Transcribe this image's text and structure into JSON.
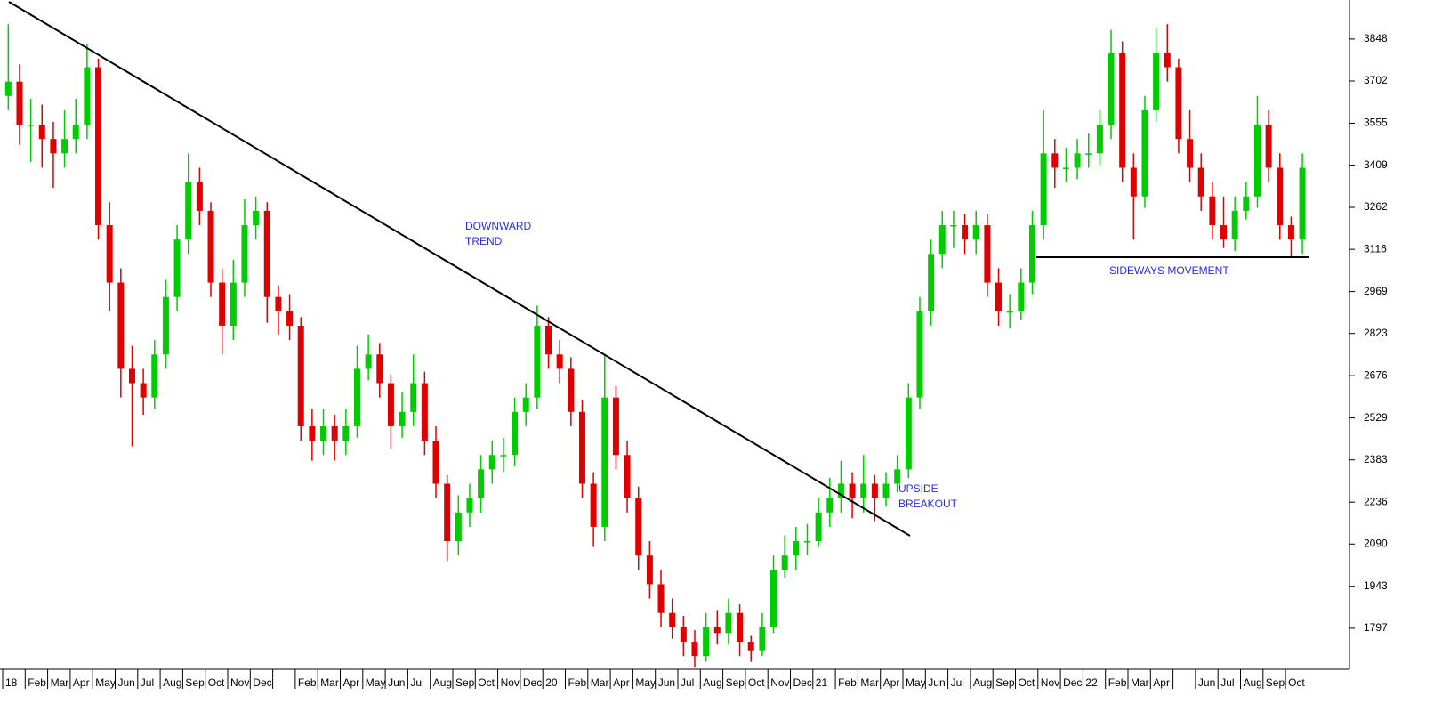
{
  "chart_data": {
    "type": "candlestick",
    "up_color": "#00cc00",
    "down_color": "#e00000",
    "ylim": [
      1654,
      3984
    ],
    "yticks": [
      1797,
      1943,
      2090,
      2236,
      2383,
      2529,
      2676,
      2823,
      2969,
      3116,
      3262,
      3409,
      3555,
      3702,
      3848
    ],
    "categories": [
      "18",
      "Feb",
      "Mar",
      "Apr",
      "May",
      "Jun",
      "Jul",
      "Aug",
      "Sep",
      "Oct",
      "Nov",
      "Dec",
      null,
      "Feb",
      "Mar",
      "Apr",
      "May",
      "Jun",
      "Jul",
      "Aug",
      "Sep",
      "Oct",
      "Nov",
      "Dec",
      "20",
      "Feb",
      "Mar",
      "Apr",
      "May",
      "Jun",
      "Jul",
      "Aug",
      "Sep",
      "Oct",
      "Nov",
      "Dec",
      "21",
      "Feb",
      "Mar",
      "Apr",
      "May",
      "Jun",
      "Jul",
      "Aug",
      "Sep",
      "Oct",
      "Nov",
      "Dec",
      "22",
      "Feb",
      "Mar",
      "Apr",
      null,
      "Jun",
      "Jul",
      "Aug",
      "Sep",
      "Oct"
    ],
    "annotations": [
      "DOWNWARD",
      "TREND",
      "UPSIDE",
      "BREAKOUT",
      "SIDEWAYS MOVEMENT"
    ],
    "ohlc": [
      [
        3650,
        3900,
        3600,
        3700
      ],
      [
        3700,
        3760,
        3480,
        3550
      ],
      [
        3550,
        3640,
        3420,
        3550
      ],
      [
        3550,
        3620,
        3400,
        3500
      ],
      [
        3500,
        3560,
        3330,
        3450
      ],
      [
        3450,
        3600,
        3400,
        3500
      ],
      [
        3500,
        3640,
        3450,
        3550
      ],
      [
        3550,
        3830,
        3500,
        3750
      ],
      [
        3750,
        3780,
        3150,
        3200
      ],
      [
        3200,
        3280,
        2900,
        3000
      ],
      [
        3000,
        3050,
        2600,
        2700
      ],
      [
        2700,
        2780,
        2430,
        2650
      ],
      [
        2650,
        2700,
        2540,
        2600
      ],
      [
        2600,
        2800,
        2560,
        2750
      ],
      [
        2750,
        3010,
        2700,
        2950
      ],
      [
        2950,
        3200,
        2900,
        3150
      ],
      [
        3150,
        3450,
        3100,
        3350
      ],
      [
        3350,
        3400,
        3200,
        3250
      ],
      [
        3250,
        3280,
        2950,
        3000
      ],
      [
        3000,
        3050,
        2750,
        2850
      ],
      [
        2850,
        3080,
        2800,
        3000
      ],
      [
        3000,
        3290,
        2950,
        3200
      ],
      [
        3200,
        3300,
        3150,
        3250
      ],
      [
        3250,
        3280,
        2860,
        2950
      ],
      [
        2950,
        2990,
        2820,
        2900
      ],
      [
        2900,
        2960,
        2800,
        2850
      ],
      [
        2850,
        2880,
        2450,
        2500
      ],
      [
        2500,
        2560,
        2380,
        2450
      ],
      [
        2450,
        2560,
        2400,
        2500
      ],
      [
        2500,
        2540,
        2380,
        2450
      ],
      [
        2450,
        2560,
        2400,
        2500
      ],
      [
        2500,
        2780,
        2460,
        2700
      ],
      [
        2700,
        2820,
        2660,
        2750
      ],
      [
        2750,
        2790,
        2600,
        2650
      ],
      [
        2650,
        2680,
        2420,
        2500
      ],
      [
        2500,
        2620,
        2460,
        2550
      ],
      [
        2550,
        2750,
        2500,
        2650
      ],
      [
        2650,
        2690,
        2400,
        2450
      ],
      [
        2450,
        2500,
        2250,
        2300
      ],
      [
        2300,
        2330,
        2030,
        2100
      ],
      [
        2100,
        2260,
        2050,
        2200
      ],
      [
        2200,
        2300,
        2150,
        2250
      ],
      [
        2250,
        2400,
        2200,
        2350
      ],
      [
        2350,
        2450,
        2300,
        2400
      ],
      [
        2400,
        2460,
        2340,
        2400
      ],
      [
        2400,
        2600,
        2360,
        2550
      ],
      [
        2550,
        2650,
        2500,
        2600
      ],
      [
        2600,
        2920,
        2560,
        2850
      ],
      [
        2850,
        2880,
        2700,
        2750
      ],
      [
        2750,
        2800,
        2650,
        2700
      ],
      [
        2700,
        2740,
        2500,
        2550
      ],
      [
        2550,
        2590,
        2250,
        2300
      ],
      [
        2300,
        2340,
        2080,
        2150
      ],
      [
        2150,
        2750,
        2100,
        2600
      ],
      [
        2600,
        2640,
        2350,
        2400
      ],
      [
        2400,
        2450,
        2200,
        2250
      ],
      [
        2250,
        2290,
        2000,
        2050
      ],
      [
        2050,
        2100,
        1900,
        1950
      ],
      [
        1950,
        2000,
        1800,
        1850
      ],
      [
        1850,
        1900,
        1760,
        1800
      ],
      [
        1800,
        1840,
        1700,
        1750
      ],
      [
        1750,
        1790,
        1660,
        1700
      ],
      [
        1700,
        1850,
        1680,
        1800
      ],
      [
        1800,
        1860,
        1740,
        1780
      ],
      [
        1780,
        1900,
        1740,
        1850
      ],
      [
        1850,
        1880,
        1700,
        1750
      ],
      [
        1750,
        1770,
        1680,
        1720
      ],
      [
        1720,
        1850,
        1700,
        1800
      ],
      [
        1800,
        2050,
        1780,
        2000
      ],
      [
        2000,
        2120,
        1970,
        2050
      ],
      [
        2050,
        2150,
        2000,
        2100
      ],
      [
        2100,
        2160,
        2050,
        2100
      ],
      [
        2100,
        2250,
        2080,
        2200
      ],
      [
        2200,
        2320,
        2150,
        2250
      ],
      [
        2250,
        2380,
        2200,
        2300
      ],
      [
        2300,
        2340,
        2180,
        2250
      ],
      [
        2250,
        2400,
        2200,
        2300
      ],
      [
        2300,
        2330,
        2170,
        2250
      ],
      [
        2250,
        2340,
        2220,
        2300
      ],
      [
        2300,
        2400,
        2270,
        2350
      ],
      [
        2350,
        2650,
        2320,
        2600
      ],
      [
        2600,
        2950,
        2560,
        2900
      ],
      [
        2900,
        3150,
        2850,
        3100
      ],
      [
        3100,
        3250,
        3050,
        3200
      ],
      [
        3200,
        3250,
        3120,
        3200
      ],
      [
        3200,
        3240,
        3100,
        3150
      ],
      [
        3150,
        3250,
        3100,
        3200
      ],
      [
        3200,
        3240,
        2950,
        3000
      ],
      [
        3000,
        3050,
        2850,
        2900
      ],
      [
        2900,
        2960,
        2840,
        2900
      ],
      [
        2900,
        3050,
        2870,
        3000
      ],
      [
        3000,
        3250,
        2960,
        3200
      ],
      [
        3200,
        3600,
        3150,
        3450
      ],
      [
        3450,
        3500,
        3330,
        3400
      ],
      [
        3400,
        3470,
        3350,
        3400
      ],
      [
        3400,
        3500,
        3360,
        3450
      ],
      [
        3450,
        3520,
        3400,
        3450
      ],
      [
        3450,
        3600,
        3410,
        3550
      ],
      [
        3550,
        3880,
        3500,
        3800
      ],
      [
        3800,
        3840,
        3350,
        3400
      ],
      [
        3400,
        3450,
        3150,
        3300
      ],
      [
        3300,
        3650,
        3260,
        3600
      ],
      [
        3600,
        3890,
        3560,
        3800
      ],
      [
        3800,
        3900,
        3700,
        3750
      ],
      [
        3750,
        3780,
        3450,
        3500
      ],
      [
        3500,
        3600,
        3350,
        3400
      ],
      [
        3400,
        3450,
        3250,
        3300
      ],
      [
        3300,
        3350,
        3150,
        3200
      ],
      [
        3200,
        3300,
        3120,
        3150
      ],
      [
        3150,
        3300,
        3110,
        3250
      ],
      [
        3250,
        3350,
        3220,
        3300
      ],
      [
        3300,
        3650,
        3260,
        3550
      ],
      [
        3550,
        3600,
        3350,
        3400
      ],
      [
        3400,
        3450,
        3150,
        3200
      ],
      [
        3200,
        3230,
        3090,
        3150
      ],
      [
        3150,
        3450,
        3100,
        3400
      ]
    ]
  }
}
